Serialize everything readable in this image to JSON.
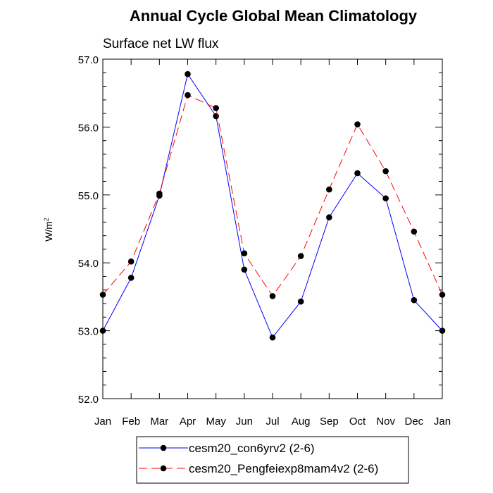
{
  "chart_data": {
    "type": "line",
    "title": "Annual Cycle Global Mean Climatology",
    "subtitle": "Surface net LW flux",
    "ylabel": "W/m",
    "ylabel_sup": "2",
    "xlabel": "",
    "categories": [
      "Jan",
      "Feb",
      "Mar",
      "Apr",
      "May",
      "Jun",
      "Jul",
      "Aug",
      "Sep",
      "Oct",
      "Nov",
      "Dec",
      "Jan"
    ],
    "ylim": [
      52.0,
      57.0
    ],
    "yticks": [
      "52.0",
      "53.0",
      "54.0",
      "55.0",
      "56.0",
      "57.0"
    ],
    "grid": false,
    "legend_position": "bottom",
    "series": [
      {
        "name": "cesm20_con6yrv2 (2-6)",
        "color": "#0000ff",
        "dash": "solid",
        "marker": "filled-circle",
        "values": [
          53.0,
          53.78,
          54.99,
          56.78,
          56.16,
          53.9,
          52.9,
          53.43,
          54.67,
          55.32,
          54.95,
          53.45,
          53.0
        ]
      },
      {
        "name": "cesm20_Pengfeiexp8mam4v2 (2-6)",
        "color": "#ff0000",
        "dash": "dashed",
        "marker": "filled-circle",
        "values": [
          53.53,
          54.02,
          55.02,
          56.47,
          56.28,
          54.14,
          53.51,
          54.1,
          55.08,
          56.04,
          55.35,
          54.46,
          53.53
        ]
      }
    ]
  }
}
